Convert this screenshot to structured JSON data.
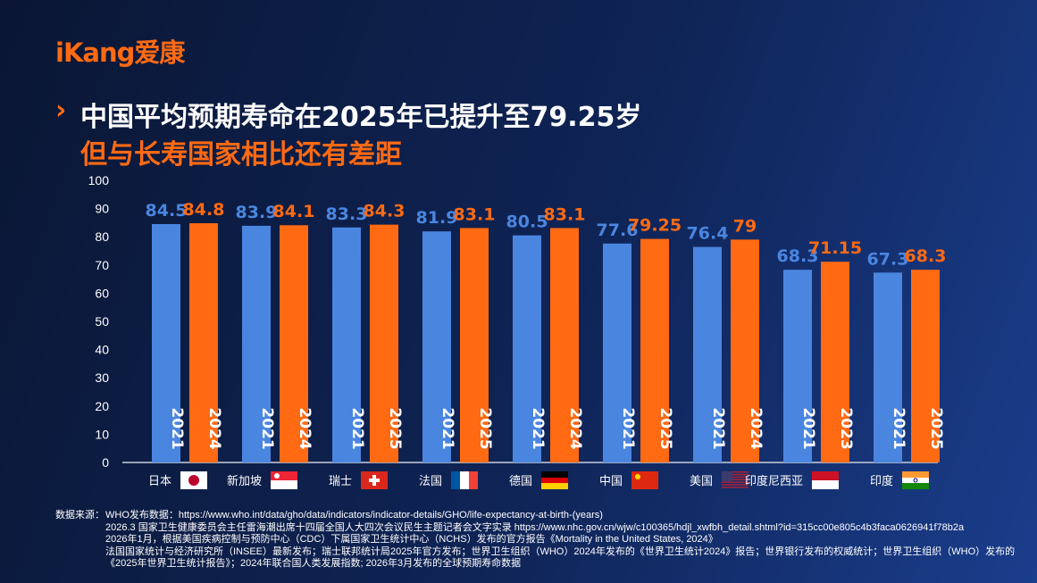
{
  "logo": "iKang爱康",
  "title": {
    "line1": "中国平均预期寿命在2025年已提升至79.25岁",
    "line2": "但与长寿国家相比还有差距"
  },
  "colors": {
    "blue": "#4a86e0",
    "orange": "#ff6a13",
    "title_accent": "#ff6a13"
  },
  "chart_data": {
    "type": "bar",
    "ylim": [
      0,
      100
    ],
    "yticks": [
      0,
      10,
      20,
      30,
      40,
      50,
      60,
      70,
      80,
      90,
      100
    ],
    "grid": false,
    "categories": [
      "日本",
      "新加坡",
      "瑞士",
      "法国",
      "德国",
      "中国",
      "美国",
      "印度尼西亚",
      "印度"
    ],
    "flags": [
      "japan",
      "singapore",
      "switzerland",
      "france",
      "germany",
      "china",
      "usa",
      "indonesia",
      "india"
    ],
    "series": [
      {
        "color": "#4a86e0",
        "years": [
          "2021",
          "2021",
          "2021",
          "2021",
          "2021",
          "2021",
          "2021",
          "2021",
          "2021"
        ],
        "values": [
          84.5,
          83.9,
          83.3,
          81.9,
          80.5,
          77.6,
          76.4,
          68.3,
          67.3
        ]
      },
      {
        "color": "#ff6a13",
        "years": [
          "2024",
          "2024",
          "2025",
          "2025",
          "2024",
          "2025",
          "2024",
          "2023",
          "2025"
        ],
        "values": [
          84.8,
          84.1,
          84.3,
          83.1,
          83.1,
          79.25,
          79,
          71.15,
          68.3
        ]
      }
    ]
  },
  "sources": {
    "label": "数据来源：",
    "lines": [
      "WHO发布数据：https://www.who.int/data/gho/data/indicators/indicator-details/GHO/life-expectancy-at-birth-(years)",
      "2026.3 国家卫生健康委员会主任雷海潮出席十四届全国人大四次会议民生主题记者会文字实录  https://www.nhc.gov.cn/wjw/c100365/hdjl_xwfbh_detail.shtml?id=315cc00e805c4b3faca0626941f78b2a",
      "2026年1月，根据美国疾病控制与预防中心（CDC）下属国家卫生统计中心（NCHS）发布的官方报告《Mortality in the United States, 2024》",
      "法国国家统计与经济研究所（INSEE）最新发布；瑞士联邦统计局2025年官方发布；世界卫生组织（WHO）2024年发布的《世界卫生统计2024》报告；世界银行发布的权威统计；世界卫生组织（WHO）发布的",
      "《2025年世界卫生统计报告》；2024年联合国人类发展指数; 2026年3月发布的全球预期寿命数据"
    ]
  }
}
